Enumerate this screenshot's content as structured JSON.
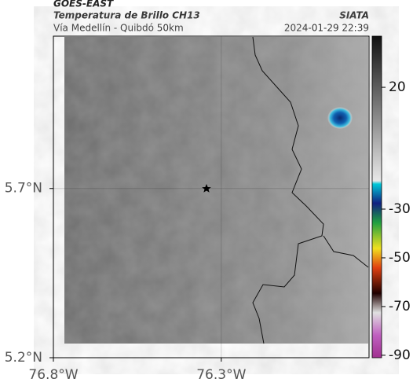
{
  "header": {
    "title": "GOES-EAST",
    "subtitle": "Temperatura de Brillo CH13",
    "location": "Vía Medellín - Quibdó 50km",
    "source": "SIATA",
    "timestamp": "2024-01-29 22:39"
  },
  "map": {
    "xlim": [
      -76.8,
      -75.86
    ],
    "ylim": [
      5.2,
      6.15
    ],
    "xticks": [
      {
        "value": -76.8,
        "label": "76.8°W"
      },
      {
        "value": -76.3,
        "label": "76.3°W"
      }
    ],
    "yticks": [
      {
        "value": 5.7,
        "label": "5.7°N"
      },
      {
        "value": 5.2,
        "label": "5.2°N"
      }
    ],
    "grid": true
  },
  "colorbar": {
    "lim": [
      -91,
      41
    ],
    "ticks": [
      20,
      -30,
      -50,
      -70,
      -90
    ]
  }
}
